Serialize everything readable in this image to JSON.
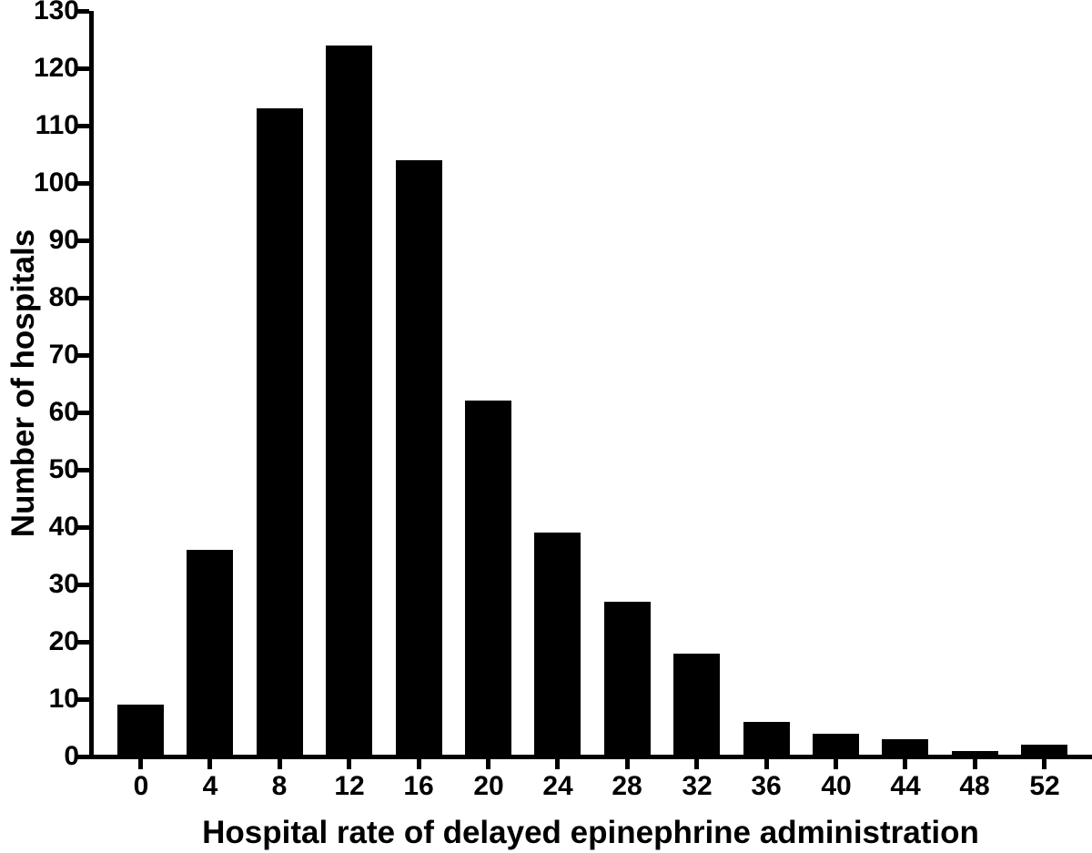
{
  "chart_data": {
    "type": "bar",
    "title": "",
    "xlabel": "Hospital rate of delayed epinephrine administration",
    "ylabel": "Number of hospitals",
    "categories": [
      "0",
      "4",
      "8",
      "12",
      "16",
      "20",
      "24",
      "28",
      "32",
      "36",
      "40",
      "44",
      "48",
      "52"
    ],
    "values": [
      9,
      36,
      113,
      124,
      104,
      62,
      39,
      27,
      18,
      6,
      4,
      3,
      1,
      2
    ],
    "ylim": [
      0,
      130
    ],
    "ytick_step": 10,
    "yticks": [
      0,
      10,
      20,
      30,
      40,
      50,
      60,
      70,
      80,
      90,
      100,
      110,
      120,
      130
    ],
    "bar_color": "#000000",
    "axis_color": "#000000",
    "background_color": "#ffffff",
    "grid": false,
    "legend_position": "none"
  }
}
